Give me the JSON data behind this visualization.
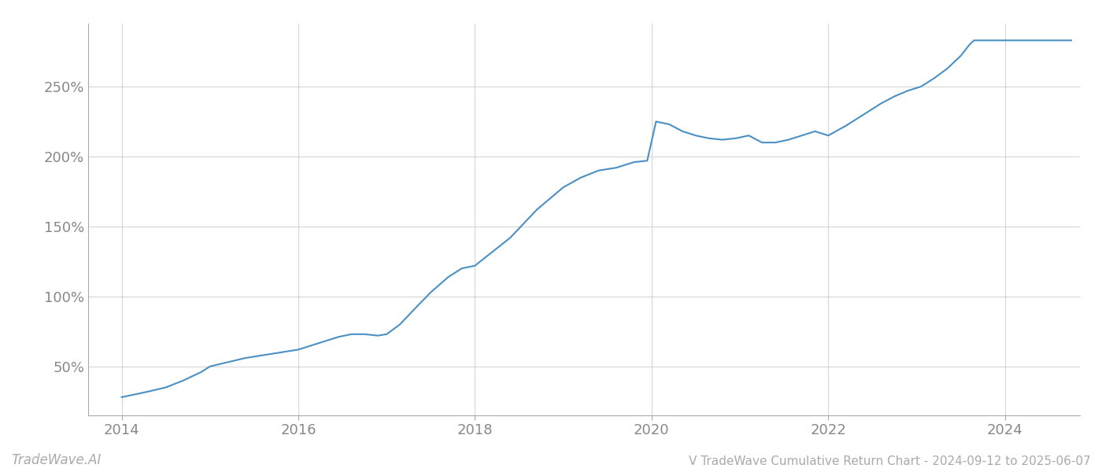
{
  "title": "V TradeWave Cumulative Return Chart - 2024-09-12 to 2025-06-07",
  "watermark": "TradeWave.AI",
  "line_color": "#4a90c4",
  "background_color": "#ffffff",
  "grid_color": "#cccccc",
  "x_years": [
    2014,
    2016,
    2018,
    2020,
    2022,
    2024
  ],
  "xlim_start": 2013.62,
  "xlim_end": 2024.85,
  "ylim_bottom": 15,
  "ylim_top": 295,
  "yticks": [
    50,
    100,
    150,
    200,
    250
  ],
  "data_points": [
    [
      2014.0,
      28
    ],
    [
      2014.15,
      30
    ],
    [
      2014.3,
      32
    ],
    [
      2014.5,
      35
    ],
    [
      2014.7,
      40
    ],
    [
      2014.9,
      46
    ],
    [
      2015.0,
      50
    ],
    [
      2015.2,
      53
    ],
    [
      2015.4,
      56
    ],
    [
      2015.6,
      58
    ],
    [
      2015.8,
      60
    ],
    [
      2016.0,
      62
    ],
    [
      2016.15,
      65
    ],
    [
      2016.3,
      68
    ],
    [
      2016.45,
      71
    ],
    [
      2016.6,
      73
    ],
    [
      2016.75,
      73
    ],
    [
      2016.9,
      72
    ],
    [
      2017.0,
      73
    ],
    [
      2017.15,
      80
    ],
    [
      2017.3,
      90
    ],
    [
      2017.5,
      103
    ],
    [
      2017.7,
      114
    ],
    [
      2017.85,
      120
    ],
    [
      2018.0,
      122
    ],
    [
      2018.2,
      132
    ],
    [
      2018.4,
      142
    ],
    [
      2018.55,
      152
    ],
    [
      2018.7,
      162
    ],
    [
      2018.85,
      170
    ],
    [
      2019.0,
      178
    ],
    [
      2019.2,
      185
    ],
    [
      2019.4,
      190
    ],
    [
      2019.6,
      192
    ],
    [
      2019.8,
      196
    ],
    [
      2019.95,
      197
    ],
    [
      2020.05,
      225
    ],
    [
      2020.2,
      223
    ],
    [
      2020.35,
      218
    ],
    [
      2020.5,
      215
    ],
    [
      2020.65,
      213
    ],
    [
      2020.8,
      212
    ],
    [
      2020.95,
      213
    ],
    [
      2021.1,
      215
    ],
    [
      2021.25,
      210
    ],
    [
      2021.4,
      210
    ],
    [
      2021.55,
      212
    ],
    [
      2021.7,
      215
    ],
    [
      2021.85,
      218
    ],
    [
      2022.0,
      215
    ],
    [
      2022.2,
      222
    ],
    [
      2022.4,
      230
    ],
    [
      2022.6,
      238
    ],
    [
      2022.75,
      243
    ],
    [
      2022.9,
      247
    ],
    [
      2023.05,
      250
    ],
    [
      2023.2,
      256
    ],
    [
      2023.35,
      263
    ],
    [
      2023.5,
      272
    ],
    [
      2023.6,
      280
    ],
    [
      2023.65,
      283
    ],
    [
      2023.7,
      283
    ],
    [
      2023.85,
      283
    ],
    [
      2024.0,
      283
    ],
    [
      2024.2,
      283
    ],
    [
      2024.4,
      283
    ],
    [
      2024.6,
      283
    ],
    [
      2024.75,
      283
    ]
  ]
}
